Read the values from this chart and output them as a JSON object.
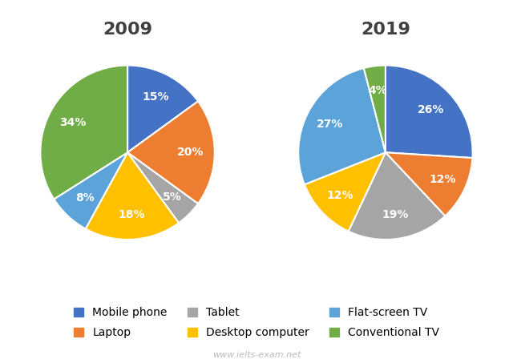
{
  "year1": "2009",
  "year2": "2019",
  "categories": [
    "Mobile phone",
    "Laptop",
    "Tablet",
    "Desktop computer",
    "Flat-screen TV",
    "Conventional TV"
  ],
  "colors": [
    "#4472C4",
    "#ED7D31",
    "#A5A5A5",
    "#FFC000",
    "#5BA3D9",
    "#70AD47"
  ],
  "values_2009": [
    15,
    20,
    5,
    18,
    8,
    34
  ],
  "values_2019": [
    26,
    12,
    19,
    12,
    27,
    4
  ],
  "startangle_2009": 90,
  "startangle_2019": 90,
  "background_color": "#FFFFFF",
  "title_fontsize": 16,
  "title_color": "#404040",
  "label_fontsize": 10,
  "legend_fontsize": 10,
  "watermark": "www.ielts-exam.net",
  "watermark_color": "#BBBBBB"
}
